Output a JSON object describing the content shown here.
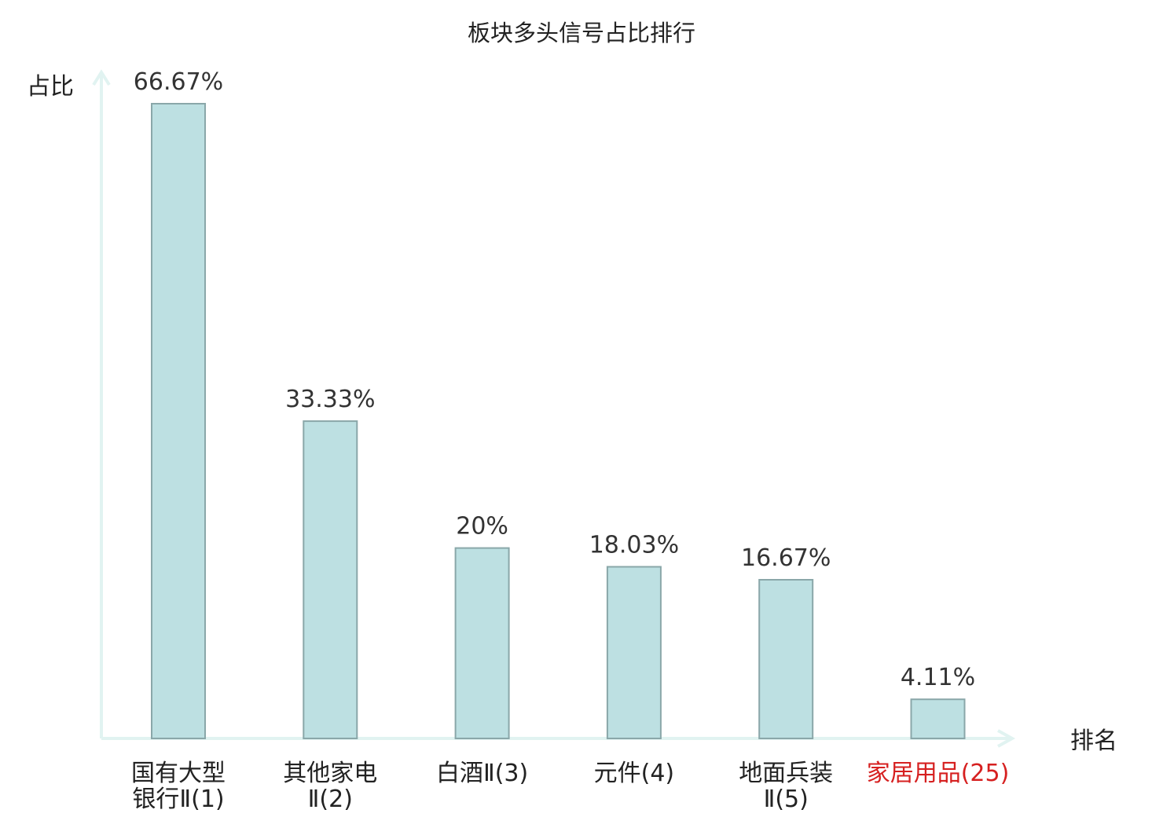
{
  "chart_data": {
    "type": "bar",
    "title": "板块多头信号占比排行",
    "ylabel": "占比",
    "xlabel": "排名",
    "ylim": [
      0,
      70
    ],
    "grid": false,
    "categories": [
      {
        "lines": [
          "国有大型",
          "银行Ⅱ(1)"
        ],
        "highlight": false
      },
      {
        "lines": [
          "其他家电",
          "Ⅱ(2)"
        ],
        "highlight": false
      },
      {
        "lines": [
          "白酒Ⅱ(3)"
        ],
        "highlight": false
      },
      {
        "lines": [
          "元件(4)"
        ],
        "highlight": false
      },
      {
        "lines": [
          "地面兵装",
          "Ⅱ(5)"
        ],
        "highlight": false
      },
      {
        "lines": [
          "家居用品(25)"
        ],
        "highlight": true
      }
    ],
    "values": [
      66.67,
      33.33,
      20,
      18.03,
      16.67,
      4.11
    ],
    "value_labels": [
      "66.67%",
      "33.33%",
      "20%",
      "18.03%",
      "16.67%",
      "4.11%"
    ]
  },
  "colors": {
    "bar_fill": "#bde0e2",
    "bar_stroke": "#8aa7a9",
    "axis": "#e1f3f1",
    "text": "#222222",
    "value_text": "#333333",
    "highlight": "#d62020"
  }
}
